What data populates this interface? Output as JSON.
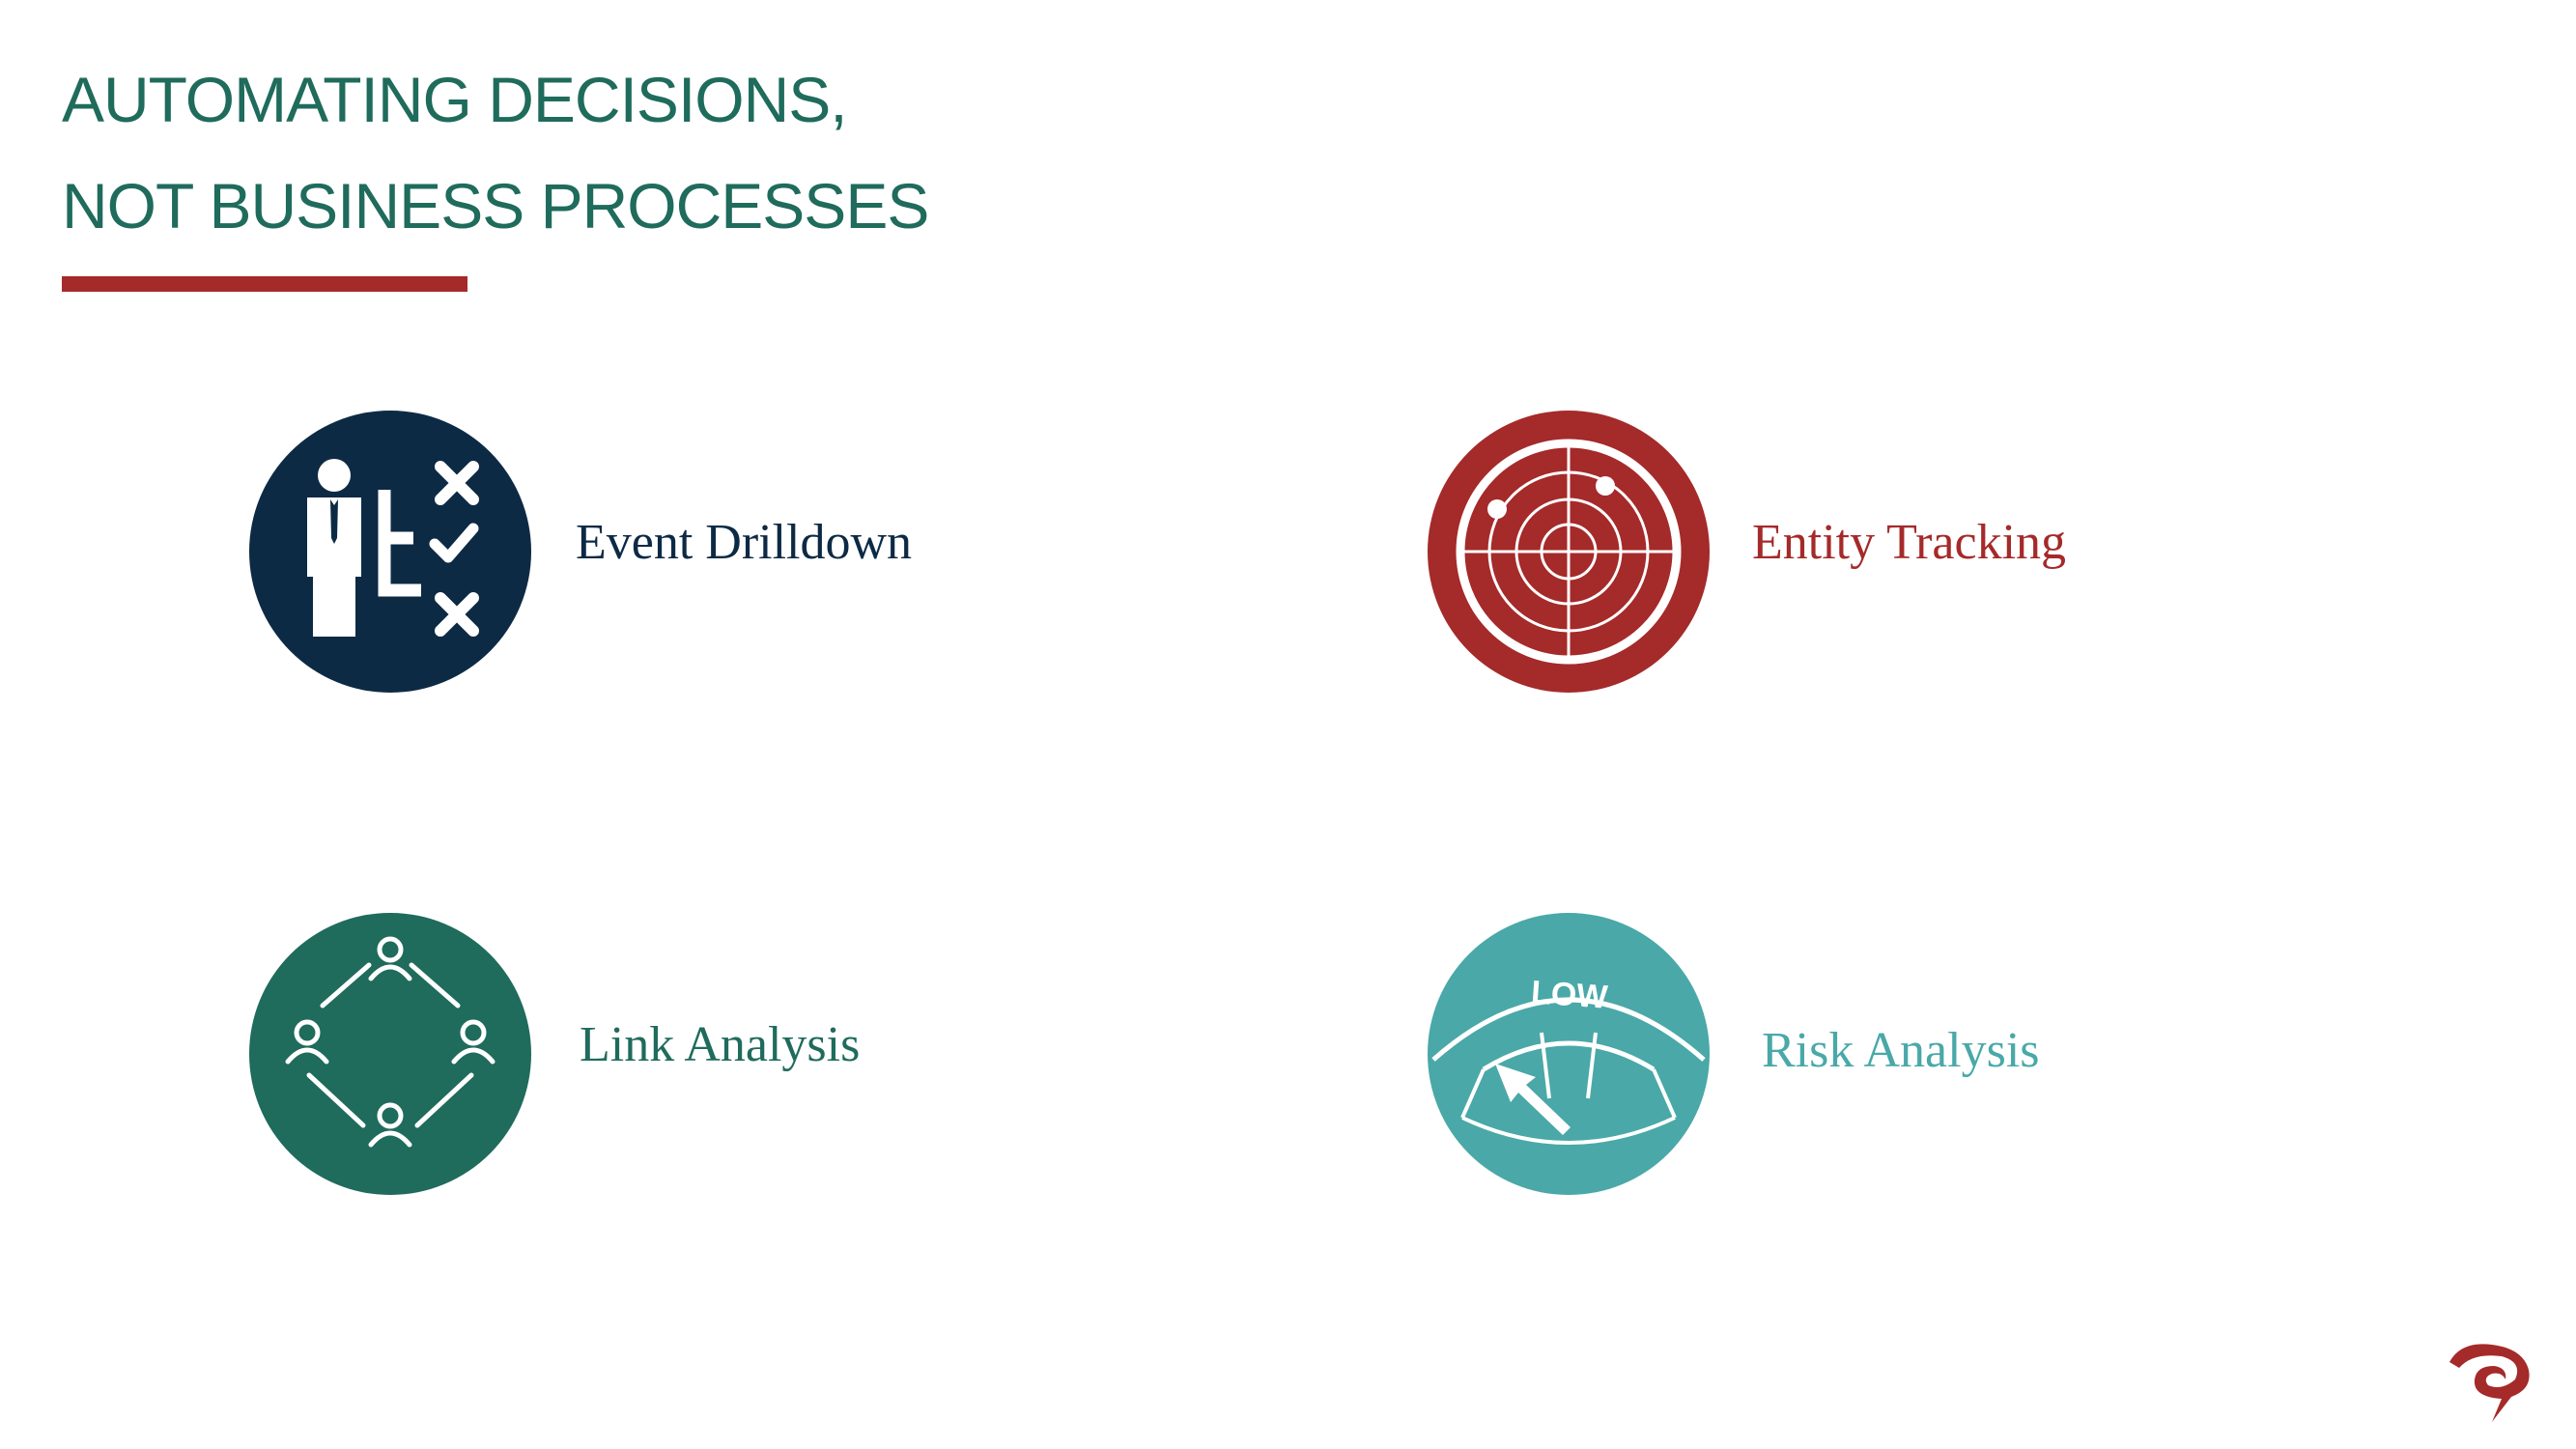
{
  "slide": {
    "title_lines": [
      "AUTOMATING DECISIONS,",
      "NOT BUSINESS PROCESSES"
    ],
    "accent_color": "#a52a2a",
    "title_color": "#1f6b5c"
  },
  "features": [
    {
      "label": "Event Drilldown",
      "icon": "decision-person-icon",
      "color": "#0d2a45"
    },
    {
      "label": "Entity Tracking",
      "icon": "radar-icon",
      "color": "#a52a2a"
    },
    {
      "label": "Link Analysis",
      "icon": "network-people-icon",
      "color": "#1f6b5c"
    },
    {
      "label": "Risk Analysis",
      "icon": "risk-gauge-icon",
      "color": "#4aa8a8"
    }
  ],
  "gauge_text": "LOW",
  "logo": {
    "icon": "company-logo"
  }
}
